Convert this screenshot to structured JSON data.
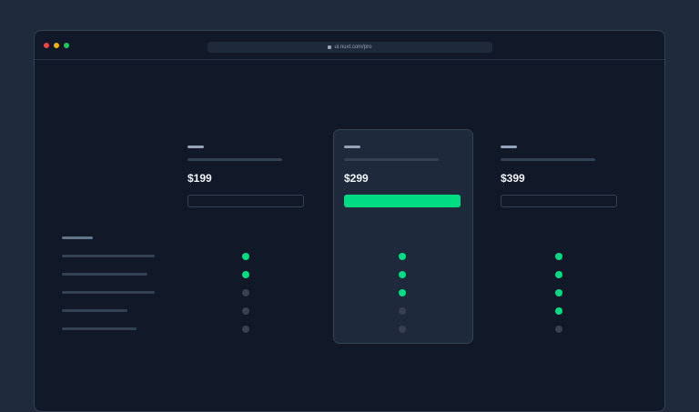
{
  "browser": {
    "url": "ui.nuxt.com/pro",
    "traffic_lights": [
      "#ef4444",
      "#eab308",
      "#22c55e"
    ]
  },
  "colors": {
    "accent": "#00dc82",
    "muted_dot": "#374151"
  },
  "plans": [
    {
      "price": "$199",
      "highlighted": false,
      "features": [
        true,
        true,
        false,
        false,
        false
      ]
    },
    {
      "price": "$299",
      "highlighted": true,
      "features": [
        true,
        true,
        true,
        false,
        false
      ]
    },
    {
      "price": "$399",
      "highlighted": false,
      "features": [
        true,
        true,
        true,
        true,
        false
      ]
    }
  ],
  "feature_count": 5
}
